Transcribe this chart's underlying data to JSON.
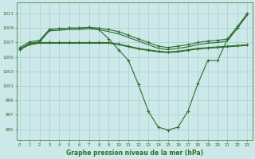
{
  "xlabel": "Graphe pression niveau de la mer (hPa)",
  "background_color": "#cce8e8",
  "grid_color": "#aacfcf",
  "line_color": "#2d6e2d",
  "x_ticks": [
    0,
    1,
    2,
    3,
    4,
    5,
    6,
    7,
    8,
    9,
    10,
    11,
    12,
    13,
    14,
    15,
    16,
    17,
    18,
    19,
    20,
    21,
    22,
    23
  ],
  "y_ticks": [
    995,
    997,
    999,
    1001,
    1003,
    1005,
    1007,
    1009,
    1011
  ],
  "ylim": [
    993.5,
    1012.5
  ],
  "xlim": [
    -0.3,
    23.5
  ],
  "line_upper1": {
    "x": [
      0,
      1,
      2,
      3,
      4,
      5,
      6,
      7,
      8,
      9,
      10,
      11,
      12,
      13,
      14,
      15,
      16,
      17,
      18,
      19,
      20,
      21,
      22,
      23
    ],
    "y": [
      1006.3,
      1007.1,
      1007.3,
      1008.8,
      1008.9,
      1009.0,
      1009.0,
      1009.1,
      1009.0,
      1008.8,
      1008.5,
      1008.0,
      1007.5,
      1007.0,
      1006.5,
      1006.3,
      1006.5,
      1006.7,
      1007.0,
      1007.2,
      1007.3,
      1007.5,
      1009.2,
      1011.0
    ]
  },
  "line_upper2": {
    "x": [
      0,
      1,
      2,
      3,
      4,
      5,
      6,
      7,
      8,
      9,
      10,
      11,
      12,
      13,
      14,
      15,
      16,
      17,
      18,
      19,
      20,
      21,
      22,
      23
    ],
    "y": [
      1006.0,
      1006.9,
      1007.1,
      1008.6,
      1008.7,
      1008.8,
      1008.8,
      1008.9,
      1008.8,
      1008.5,
      1008.2,
      1007.7,
      1007.2,
      1006.7,
      1006.2,
      1006.0,
      1006.2,
      1006.4,
      1006.7,
      1006.9,
      1007.0,
      1007.2,
      1009.0,
      1010.8
    ]
  },
  "line_lower1": {
    "x": [
      0,
      1,
      2,
      3,
      4,
      5,
      6,
      7,
      8,
      9,
      10,
      11,
      12,
      13,
      14,
      15,
      16,
      17,
      18,
      19,
      20,
      21,
      22,
      23
    ],
    "y": [
      1006.1,
      1006.8,
      1007.0,
      1007.0,
      1007.0,
      1007.0,
      1007.0,
      1007.0,
      1007.0,
      1007.0,
      1006.8,
      1006.5,
      1006.2,
      1006.0,
      1005.8,
      1005.7,
      1005.8,
      1006.0,
      1006.2,
      1006.3,
      1006.4,
      1006.5,
      1006.6,
      1006.7
    ]
  },
  "line_lower2": {
    "x": [
      0,
      1,
      2,
      3,
      4,
      5,
      6,
      7,
      8,
      9,
      10,
      11,
      12,
      13,
      14,
      15,
      16,
      17,
      18,
      19,
      20,
      21,
      22,
      23
    ],
    "y": [
      1006.0,
      1006.7,
      1006.9,
      1006.9,
      1006.9,
      1006.9,
      1006.9,
      1006.9,
      1006.9,
      1006.9,
      1006.7,
      1006.4,
      1006.1,
      1005.9,
      1005.7,
      1005.6,
      1005.7,
      1005.9,
      1006.1,
      1006.2,
      1006.3,
      1006.4,
      1006.5,
      1006.6
    ]
  },
  "line_dip": {
    "x": [
      0,
      1,
      2,
      3,
      4,
      5,
      6,
      7,
      8,
      9,
      10,
      11,
      12,
      13,
      14,
      15,
      16,
      17,
      18,
      19,
      20,
      21,
      22,
      23
    ],
    "y": [
      1006.1,
      1006.8,
      1007.0,
      1008.8,
      1008.9,
      1009.0,
      1009.0,
      1009.1,
      1008.8,
      1007.5,
      1006.0,
      1004.5,
      1001.2,
      997.5,
      995.3,
      994.9,
      995.3,
      997.5,
      1001.3,
      1004.5,
      1004.5,
      1007.5,
      1009.0,
      1011.0
    ]
  }
}
